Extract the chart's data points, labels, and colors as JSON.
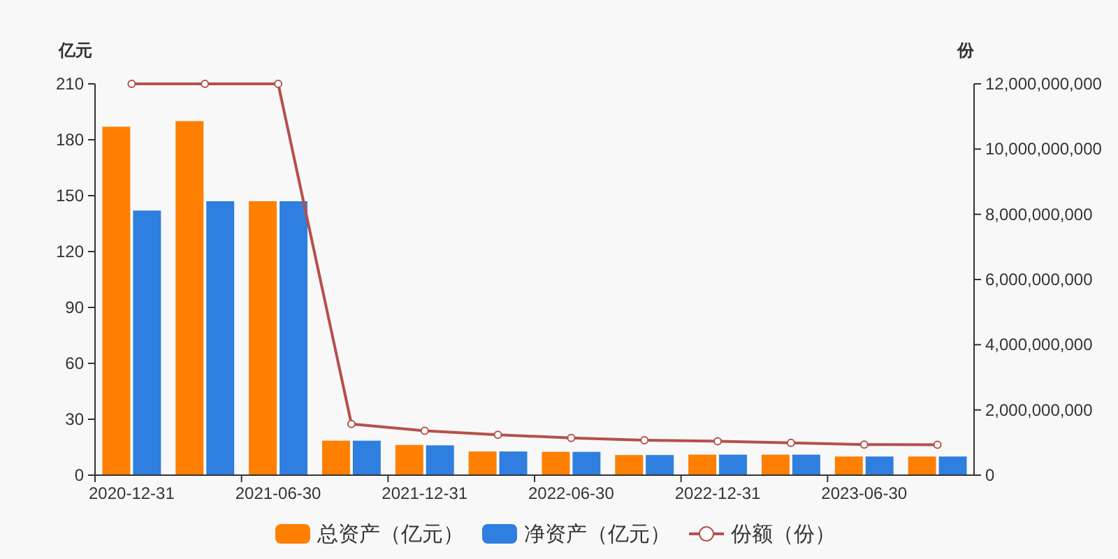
{
  "chart_data": {
    "type": "bar",
    "ylabel": "亿元",
    "y2label": "份",
    "categories": [
      "2020-12-31",
      null,
      "2021-06-30",
      null,
      "2021-12-31",
      null,
      "2022-06-30",
      null,
      "2022-12-31",
      null,
      "2023-06-30",
      null
    ],
    "series": [
      {
        "name": "总资产（亿元）",
        "color": "#ff7f00",
        "values": [
          187,
          190,
          147,
          18.5,
          16.2,
          12.7,
          12.5,
          10.8,
          11,
          11,
          10,
          10
        ]
      },
      {
        "name": "净资产（亿元）",
        "color": "#2e7fdf",
        "values": [
          142,
          147,
          147,
          18.5,
          16,
          12.7,
          12.5,
          10.8,
          11,
          11,
          10,
          10
        ]
      },
      {
        "name": "份额（份）",
        "type": "line",
        "axis": "y2",
        "color": "#b5504a",
        "marker": "circle",
        "values": [
          12000000000,
          12000000000,
          12000000000,
          1570000000,
          1360000000,
          1240000000,
          1140000000,
          1070000000,
          1040000000,
          990000000,
          940000000,
          930000000
        ]
      }
    ],
    "ylim": [
      0,
      210
    ],
    "yticks": [
      0,
      30,
      60,
      90,
      120,
      150,
      180,
      210
    ],
    "y2lim": [
      0,
      12000000000
    ],
    "y2ticks": [
      {
        "value": 0,
        "label": "0"
      },
      {
        "value": 2000000000,
        "label": "2,000,000,000"
      },
      {
        "value": 4000000000,
        "label": "4,000,000,000"
      },
      {
        "value": 6000000000,
        "label": "6,000,000,000"
      },
      {
        "value": 8000000000,
        "label": "8,000,000,000"
      },
      {
        "value": 10000000000,
        "label": "10,000,000,000"
      },
      {
        "value": 12000000000,
        "label": "12,000,000,000"
      }
    ],
    "grid": false,
    "legend": "bottom"
  }
}
